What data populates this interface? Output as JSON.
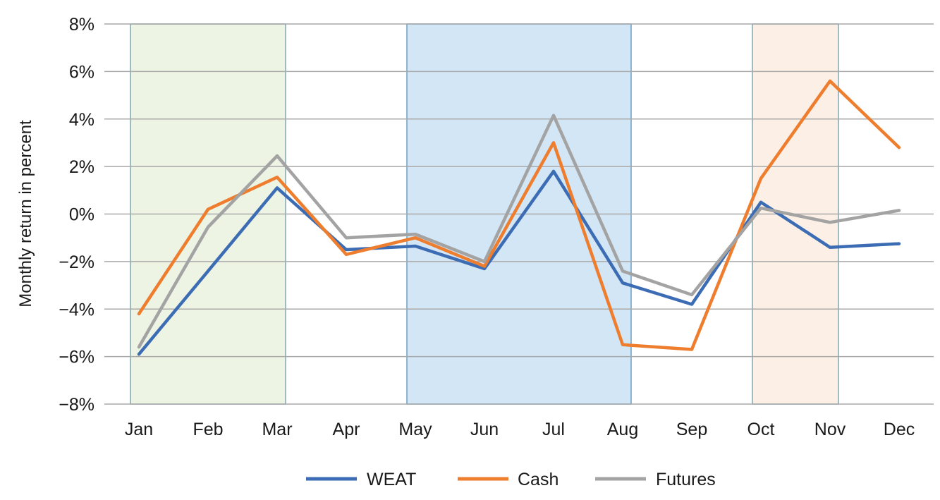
{
  "chart_data": {
    "type": "line",
    "title": "",
    "xlabel": "",
    "ylabel": "Monthly return in percent",
    "categories": [
      "Jan",
      "Feb",
      "Mar",
      "Apr",
      "May",
      "Jun",
      "Jul",
      "Aug",
      "Sep",
      "Oct",
      "Nov",
      "Dec"
    ],
    "ylim": [
      -8,
      8
    ],
    "yticks": [
      8,
      6,
      4,
      2,
      0,
      -2,
      -4,
      -6,
      -8
    ],
    "ytick_labels": [
      "8%",
      "6%",
      "4%",
      "2%",
      "0%",
      "−2%",
      "−4%",
      "−6%",
      "−8%"
    ],
    "grid": true,
    "legend_position": "bottom",
    "series": [
      {
        "name": "WEAT",
        "color": "#3b6cb4",
        "values": [
          -5.9,
          -2.4,
          1.1,
          -1.5,
          -1.35,
          -2.3,
          1.8,
          -2.9,
          -3.8,
          0.5,
          -1.4,
          -1.25
        ]
      },
      {
        "name": "Cash",
        "color": "#ee7d2e",
        "values": [
          -4.2,
          0.2,
          1.55,
          -1.7,
          -1.0,
          -2.2,
          3.0,
          -5.5,
          -5.7,
          1.5,
          5.6,
          2.8
        ]
      },
      {
        "name": "Futures",
        "color": "#a3a3a3",
        "values": [
          -5.6,
          -0.55,
          2.45,
          -1.0,
          -0.85,
          -2.0,
          4.15,
          -2.4,
          -3.4,
          0.25,
          -0.35,
          0.15
        ]
      }
    ],
    "shaded_regions": [
      {
        "from": "Jan",
        "to": "Mar",
        "fill": "#eef4e4",
        "stroke": "#7fa7b4"
      },
      {
        "from": "May",
        "to": "Aug",
        "fill": "#d3e6f5",
        "stroke": "#6f9fc0"
      },
      {
        "from": "Oct",
        "to": "Nov",
        "fill": "#fcf0e6",
        "stroke": "#7fa7b4"
      }
    ]
  }
}
